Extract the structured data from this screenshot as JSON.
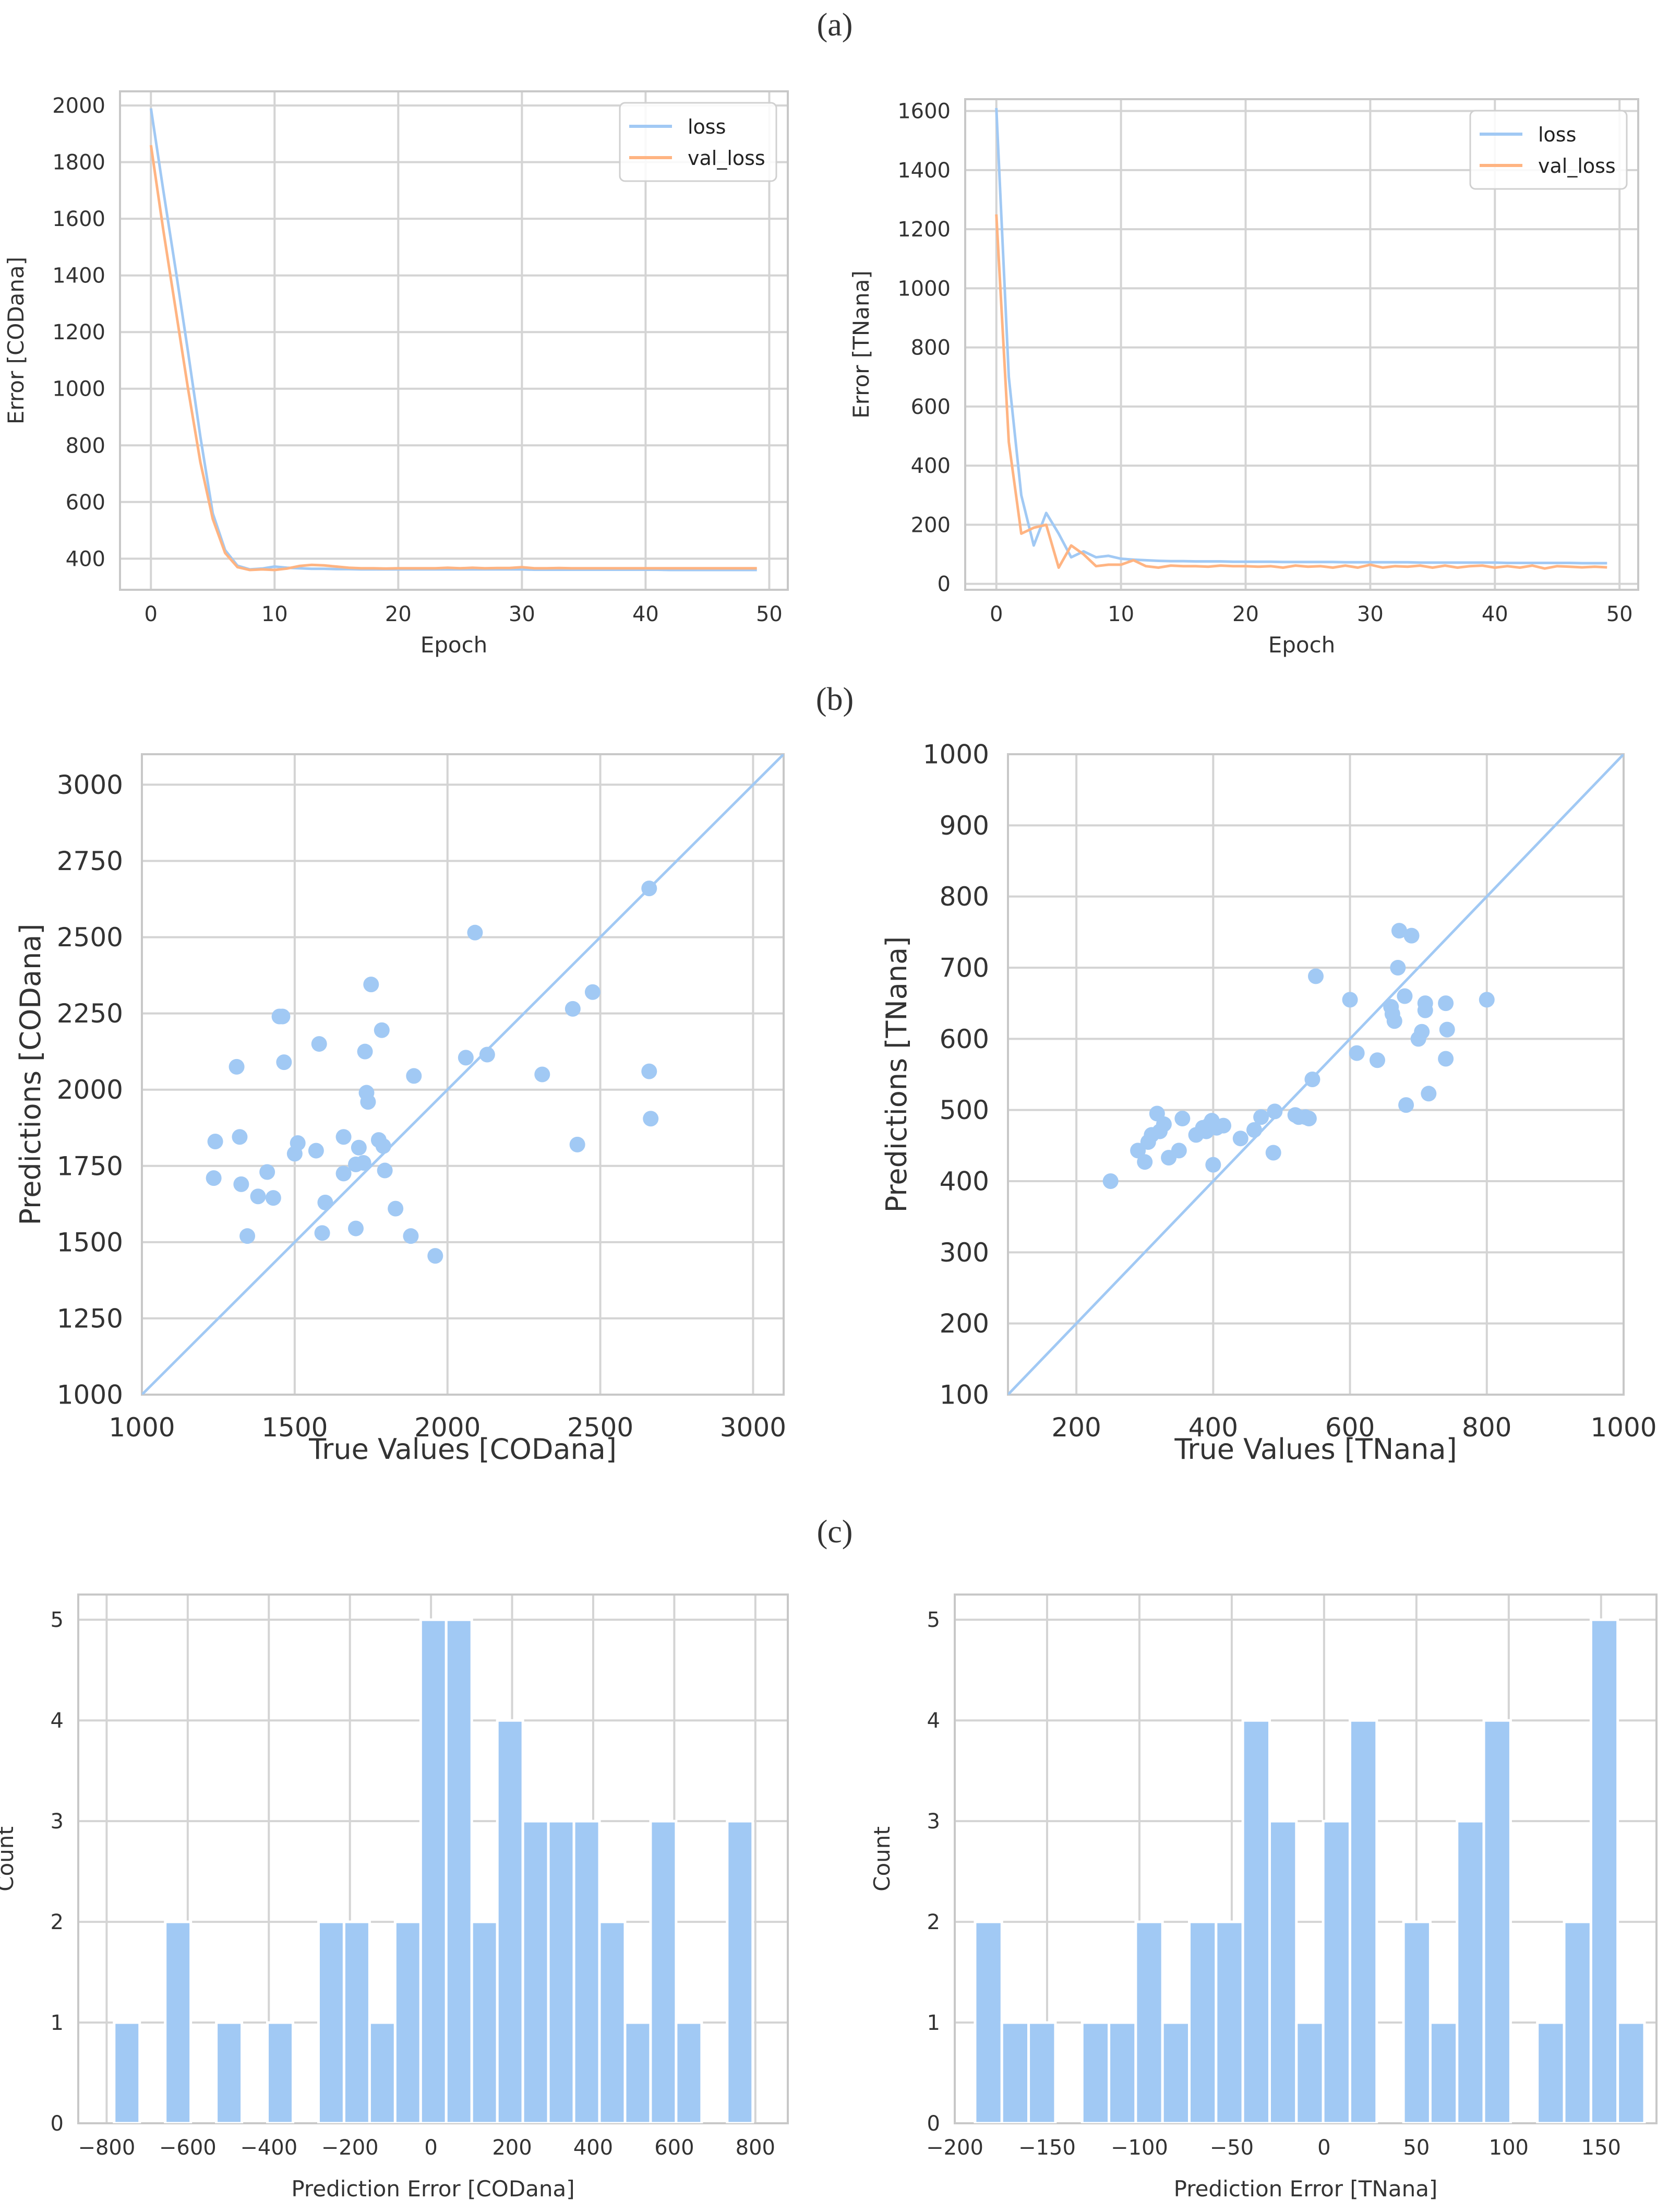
{
  "panel_labels": [
    "(a)",
    "(b)",
    "(c)"
  ],
  "colors": {
    "blue": "#a1c9f4",
    "orange": "#ffb482",
    "grid": "#d4d4d4",
    "frame": "#c8c8c8"
  },
  "chart_data": [
    {
      "type": "line",
      "xlabel": "Epoch",
      "ylabel": "Error [CODana]",
      "xlim": [
        -2.5,
        51.5
      ],
      "ylim": [
        290,
        2050
      ],
      "xticks": [
        0,
        10,
        20,
        30,
        40,
        50
      ],
      "yticks": [
        400,
        600,
        800,
        1000,
        1200,
        1400,
        1600,
        1800,
        2000
      ],
      "legend": "top-right",
      "x": [
        0,
        1,
        2,
        3,
        4,
        5,
        6,
        7,
        8,
        9,
        10,
        11,
        12,
        13,
        14,
        15,
        16,
        17,
        18,
        19,
        20,
        21,
        22,
        23,
        24,
        25,
        26,
        27,
        28,
        29,
        30,
        31,
        32,
        33,
        34,
        35,
        36,
        37,
        38,
        39,
        40,
        41,
        42,
        43,
        44,
        45,
        46,
        47,
        48,
        49
      ],
      "series": [
        {
          "name": "loss",
          "color": "#a1c9f4",
          "values": [
            1990,
            1700,
            1420,
            1130,
            830,
            560,
            430,
            375,
            362,
            365,
            372,
            368,
            366,
            364,
            364,
            363,
            363,
            362,
            362,
            362,
            362,
            362,
            362,
            362,
            362,
            362,
            362,
            362,
            362,
            362,
            362,
            361,
            361,
            361,
            361,
            361,
            361,
            361,
            361,
            361,
            361,
            361,
            360,
            360,
            360,
            360,
            360,
            360,
            360,
            360
          ]
        },
        {
          "name": "val_loss",
          "color": "#ffb482",
          "values": [
            1860,
            1560,
            1280,
            1000,
            740,
            540,
            420,
            370,
            360,
            362,
            360,
            365,
            374,
            378,
            376,
            372,
            368,
            366,
            366,
            365,
            366,
            366,
            366,
            366,
            368,
            366,
            368,
            366,
            367,
            367,
            370,
            366,
            366,
            367,
            366,
            366,
            366,
            366,
            366,
            366,
            366,
            366,
            366,
            366,
            366,
            366,
            366,
            366,
            366,
            366
          ]
        }
      ]
    },
    {
      "type": "line",
      "xlabel": "Epoch",
      "ylabel": "Error [TNana]",
      "xlim": [
        -2.5,
        51.5
      ],
      "ylim": [
        -20,
        1640
      ],
      "xticks": [
        0,
        10,
        20,
        30,
        40,
        50
      ],
      "yticks": [
        0,
        200,
        400,
        600,
        800,
        1000,
        1200,
        1400,
        1600
      ],
      "legend": "top-right",
      "x": [
        0,
        1,
        2,
        3,
        4,
        5,
        6,
        7,
        8,
        9,
        10,
        11,
        12,
        13,
        14,
        15,
        16,
        17,
        18,
        19,
        20,
        21,
        22,
        23,
        24,
        25,
        26,
        27,
        28,
        29,
        30,
        31,
        32,
        33,
        34,
        35,
        36,
        37,
        38,
        39,
        40,
        41,
        42,
        43,
        44,
        45,
        46,
        47,
        48,
        49
      ],
      "series": [
        {
          "name": "loss",
          "color": "#a1c9f4",
          "values": [
            1610,
            700,
            300,
            130,
            240,
            170,
            90,
            110,
            90,
            95,
            85,
            82,
            80,
            78,
            77,
            77,
            76,
            76,
            76,
            75,
            75,
            75,
            75,
            74,
            74,
            74,
            74,
            74,
            73,
            73,
            73,
            73,
            73,
            73,
            72,
            72,
            72,
            72,
            72,
            72,
            72,
            71,
            71,
            71,
            71,
            71,
            71,
            70,
            70,
            70
          ]
        },
        {
          "name": "val_loss",
          "color": "#ffb482",
          "values": [
            1250,
            480,
            170,
            190,
            200,
            55,
            130,
            100,
            60,
            65,
            65,
            80,
            60,
            55,
            62,
            60,
            60,
            58,
            62,
            60,
            60,
            58,
            60,
            55,
            62,
            58,
            60,
            55,
            62,
            55,
            65,
            55,
            60,
            58,
            62,
            55,
            62,
            55,
            60,
            62,
            55,
            60,
            55,
            62,
            52,
            60,
            58,
            56,
            58,
            56
          ]
        }
      ]
    },
    {
      "type": "scatter",
      "xlabel": "True Values [CODana]",
      "ylabel": "Predictions [CODana]",
      "xlim": [
        1000,
        3100
      ],
      "ylim": [
        1000,
        3100
      ],
      "xticks": [
        1000,
        1500,
        2000,
        2500,
        3000
      ],
      "yticks": [
        1000,
        1250,
        1500,
        1750,
        2000,
        2250,
        2500,
        2750,
        3000
      ],
      "color": "#a1c9f4",
      "points": [
        [
          1240,
          1830
        ],
        [
          1235,
          1710
        ],
        [
          1310,
          2075
        ],
        [
          1320,
          1845
        ],
        [
          1325,
          1690
        ],
        [
          1345,
          1520
        ],
        [
          1380,
          1650
        ],
        [
          1410,
          1730
        ],
        [
          1430,
          1645
        ],
        [
          1450,
          2240
        ],
        [
          1460,
          2240
        ],
        [
          1465,
          2090
        ],
        [
          1500,
          1790
        ],
        [
          1510,
          1825
        ],
        [
          1570,
          1800
        ],
        [
          1580,
          2150
        ],
        [
          1590,
          1530
        ],
        [
          1600,
          1630
        ],
        [
          1660,
          1725
        ],
        [
          1660,
          1845
        ],
        [
          1700,
          1755
        ],
        [
          1700,
          1545
        ],
        [
          1710,
          1810
        ],
        [
          1725,
          1760
        ],
        [
          1730,
          2125
        ],
        [
          1735,
          1990
        ],
        [
          1740,
          1960
        ],
        [
          1750,
          2345
        ],
        [
          1775,
          1835
        ],
        [
          1785,
          2195
        ],
        [
          1790,
          1815
        ],
        [
          1795,
          1735
        ],
        [
          1830,
          1610
        ],
        [
          1880,
          1520
        ],
        [
          1890,
          2045
        ],
        [
          1960,
          1455
        ],
        [
          2060,
          2105
        ],
        [
          2090,
          2515
        ],
        [
          2130,
          2115
        ],
        [
          2310,
          2050
        ],
        [
          2410,
          2265
        ],
        [
          2425,
          1820
        ],
        [
          2475,
          2320
        ],
        [
          2660,
          2660
        ],
        [
          2660,
          2060
        ],
        [
          2665,
          1905
        ]
      ]
    },
    {
      "type": "scatter",
      "xlabel": "True Values [TNana]",
      "ylabel": "Predictions [TNana]",
      "xlim": [
        100,
        1000
      ],
      "ylim": [
        100,
        1000
      ],
      "xticks": [
        200,
        400,
        600,
        800,
        1000
      ],
      "yticks": [
        100,
        200,
        300,
        400,
        500,
        600,
        700,
        800,
        900,
        1000
      ],
      "color": "#a1c9f4",
      "points": [
        [
          250,
          400
        ],
        [
          290,
          443
        ],
        [
          300,
          427
        ],
        [
          305,
          455
        ],
        [
          310,
          465
        ],
        [
          318,
          495
        ],
        [
          322,
          470
        ],
        [
          328,
          480
        ],
        [
          335,
          433
        ],
        [
          350,
          443
        ],
        [
          355,
          488
        ],
        [
          375,
          465
        ],
        [
          385,
          475
        ],
        [
          390,
          470
        ],
        [
          395,
          480
        ],
        [
          398,
          485
        ],
        [
          400,
          423
        ],
        [
          405,
          475
        ],
        [
          415,
          478
        ],
        [
          440,
          460
        ],
        [
          460,
          472
        ],
        [
          470,
          490
        ],
        [
          488,
          440
        ],
        [
          490,
          498
        ],
        [
          520,
          493
        ],
        [
          525,
          490
        ],
        [
          535,
          490
        ],
        [
          540,
          488
        ],
        [
          545,
          543
        ],
        [
          550,
          688
        ],
        [
          600,
          655
        ],
        [
          610,
          580
        ],
        [
          640,
          570
        ],
        [
          660,
          645
        ],
        [
          662,
          635
        ],
        [
          665,
          625
        ],
        [
          670,
          700
        ],
        [
          672,
          752
        ],
        [
          680,
          660
        ],
        [
          682,
          507
        ],
        [
          690,
          745
        ],
        [
          700,
          600
        ],
        [
          705,
          610
        ],
        [
          710,
          640
        ],
        [
          710,
          650
        ],
        [
          715,
          523
        ],
        [
          740,
          650
        ],
        [
          740,
          572
        ],
        [
          742,
          613
        ],
        [
          800,
          655
        ]
      ]
    },
    {
      "type": "bar",
      "xlabel": "Prediction Error [CODana]",
      "ylabel": "Count",
      "xlim": [
        -870,
        880
      ],
      "ylim": [
        0,
        5.25
      ],
      "xticks": [
        -800,
        -600,
        -400,
        -200,
        0,
        200,
        400,
        600,
        800
      ],
      "yticks": [
        0,
        1,
        2,
        3,
        4,
        5
      ],
      "bin_width": 63,
      "bin_centers": [
        -750,
        -624,
        -498,
        -372,
        -246,
        -183,
        -120,
        -57,
        6,
        69,
        132,
        195,
        258,
        321,
        384,
        447,
        510,
        573,
        636,
        762
      ],
      "values": [
        1,
        2,
        1,
        1,
        2,
        2,
        1,
        2,
        5,
        5,
        2,
        4,
        3,
        3,
        3,
        2,
        1,
        3,
        1,
        3
      ]
    },
    {
      "type": "bar",
      "xlabel": "Prediction Error [TNana]",
      "ylabel": "Count",
      "xlim": [
        -200,
        180
      ],
      "ylim": [
        0,
        5.25
      ],
      "xticks": [
        -200,
        -150,
        -100,
        -50,
        0,
        50,
        100,
        150
      ],
      "yticks": [
        0,
        1,
        2,
        3,
        4,
        5
      ],
      "bin_width": 14.5,
      "bin_centers": [
        -181.75,
        -167.25,
        -152.75,
        -123.75,
        -109.25,
        -94.75,
        -80.25,
        -65.75,
        -51.25,
        -36.75,
        -22.25,
        -7.75,
        6.75,
        21.25,
        50.25,
        64.75,
        79.25,
        93.75,
        122.75,
        137.25,
        151.75,
        166.25
      ],
      "values": [
        2,
        1,
        1,
        1,
        1,
        2,
        1,
        2,
        2,
        4,
        3,
        1,
        3,
        4,
        2,
        1,
        3,
        4,
        1,
        2,
        5,
        1
      ]
    }
  ]
}
